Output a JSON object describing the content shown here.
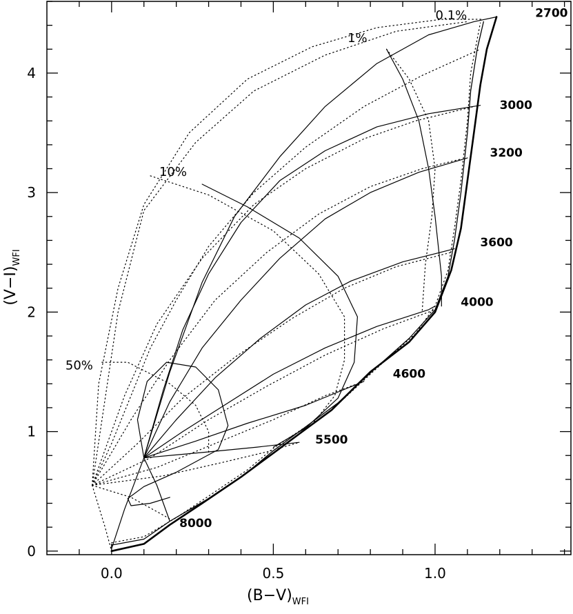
{
  "chart_data": {
    "type": "line",
    "title": "",
    "xlabel": "(B−V)",
    "xlabel_sub": "WFI",
    "ylabel": "(V−I)",
    "ylabel_sub": "WFI",
    "xlim": [
      -0.2,
      1.42
    ],
    "ylim": [
      -0.03,
      4.6
    ],
    "grid": false,
    "x_ticks": [
      {
        "v": 0.0,
        "label": "0.0"
      },
      {
        "v": 0.5,
        "label": "0.5"
      },
      {
        "v": 1.0,
        "label": "1.0"
      }
    ],
    "y_ticks": [
      {
        "v": 0,
        "label": "0"
      },
      {
        "v": 1,
        "label": "1"
      },
      {
        "v": 2,
        "label": "2"
      },
      {
        "v": 3,
        "label": "3"
      },
      {
        "v": 4,
        "label": "4"
      }
    ],
    "x_minor_step": 0.1,
    "y_minor_step": 0.2,
    "temperature_labels": [
      {
        "text": "2700",
        "x": 1.36,
        "y": 4.47
      },
      {
        "text": "3000",
        "x": 1.25,
        "y": 3.7
      },
      {
        "text": "3200",
        "x": 1.22,
        "y": 3.3
      },
      {
        "text": "3600",
        "x": 1.19,
        "y": 2.55
      },
      {
        "text": "4000",
        "x": 1.13,
        "y": 2.05
      },
      {
        "text": "4600",
        "x": 0.92,
        "y": 1.45
      },
      {
        "text": "5500",
        "x": 0.68,
        "y": 0.9
      },
      {
        "text": "8000",
        "x": 0.26,
        "y": 0.2
      }
    ],
    "fraction_labels": [
      {
        "text": "0.1%",
        "x": 1.05,
        "y": 4.45
      },
      {
        "text": "1%",
        "x": 0.76,
        "y": 4.26
      },
      {
        "text": "10%",
        "x": 0.19,
        "y": 3.14
      },
      {
        "text": "50%",
        "x": -0.1,
        "y": 1.52
      }
    ],
    "series": [
      {
        "style": "solid",
        "width": 2.6,
        "points": [
          [
            0.0,
            0.0
          ],
          [
            0.1,
            0.06
          ],
          [
            0.18,
            0.22
          ],
          [
            0.28,
            0.4
          ],
          [
            0.4,
            0.62
          ],
          [
            0.5,
            0.82
          ],
          [
            0.58,
            0.98
          ],
          [
            0.68,
            1.18
          ],
          [
            0.8,
            1.5
          ],
          [
            0.92,
            1.75
          ],
          [
            1.0,
            2.0
          ],
          [
            1.05,
            2.35
          ],
          [
            1.08,
            2.7
          ],
          [
            1.1,
            3.1
          ],
          [
            1.12,
            3.5
          ],
          [
            1.14,
            3.9
          ],
          [
            1.16,
            4.2
          ],
          [
            1.19,
            4.47
          ]
        ]
      },
      {
        "style": "solid",
        "width": 1.3,
        "points": [
          [
            0.0,
            0.05
          ],
          [
            0.1,
            0.1
          ],
          [
            0.18,
            0.25
          ],
          [
            0.3,
            0.44
          ],
          [
            0.42,
            0.66
          ],
          [
            0.5,
            0.84
          ],
          [
            0.58,
            1.0
          ],
          [
            0.7,
            1.24
          ],
          [
            0.82,
            1.54
          ],
          [
            0.92,
            1.78
          ],
          [
            1.0,
            2.02
          ],
          [
            1.04,
            2.3
          ],
          [
            1.06,
            2.6
          ],
          [
            1.08,
            3.0
          ],
          [
            1.1,
            3.5
          ],
          [
            1.11,
            3.85
          ],
          [
            1.13,
            4.2
          ],
          [
            1.15,
            4.43
          ]
        ]
      },
      {
        "style": "dotted",
        "width": 1.2,
        "points": [
          [
            0.0,
            0.07
          ],
          [
            0.1,
            0.12
          ],
          [
            0.2,
            0.28
          ],
          [
            0.3,
            0.46
          ],
          [
            0.42,
            0.68
          ],
          [
            0.5,
            0.86
          ],
          [
            0.6,
            1.04
          ],
          [
            0.72,
            1.28
          ],
          [
            0.84,
            1.58
          ],
          [
            0.94,
            1.82
          ],
          [
            1.0,
            2.05
          ],
          [
            1.04,
            2.35
          ],
          [
            1.06,
            2.7
          ],
          [
            1.08,
            3.1
          ],
          [
            1.1,
            3.6
          ],
          [
            1.11,
            4.0
          ],
          [
            1.14,
            4.42
          ]
        ]
      },
      {
        "style": "solid",
        "width": 1.2,
        "points": [
          [
            0.0,
            0.02
          ],
          [
            0.04,
            0.35
          ],
          [
            0.1,
            0.78
          ],
          [
            0.18,
            1.5
          ],
          [
            0.28,
            2.25
          ],
          [
            0.38,
            2.8
          ],
          [
            0.52,
            3.3
          ],
          [
            0.66,
            3.72
          ],
          [
            0.82,
            4.08
          ],
          [
            0.98,
            4.32
          ],
          [
            1.12,
            4.43
          ],
          [
            1.19,
            4.47
          ]
        ]
      },
      {
        "style": "solid",
        "width": 1.2,
        "points": [
          [
            0.1,
            0.78
          ],
          [
            0.16,
            1.35
          ],
          [
            0.22,
            1.85
          ],
          [
            0.3,
            2.32
          ],
          [
            0.4,
            2.75
          ],
          [
            0.52,
            3.1
          ],
          [
            0.66,
            3.35
          ],
          [
            0.82,
            3.55
          ],
          [
            0.98,
            3.66
          ],
          [
            1.14,
            3.73
          ]
        ]
      },
      {
        "style": "solid",
        "width": 1.2,
        "points": [
          [
            0.1,
            0.78
          ],
          [
            0.18,
            1.25
          ],
          [
            0.28,
            1.7
          ],
          [
            0.4,
            2.1
          ],
          [
            0.52,
            2.45
          ],
          [
            0.66,
            2.78
          ],
          [
            0.8,
            3.0
          ],
          [
            0.95,
            3.17
          ],
          [
            1.1,
            3.29
          ]
        ]
      },
      {
        "style": "solid",
        "width": 1.2,
        "points": [
          [
            0.1,
            0.78
          ],
          [
            0.2,
            1.1
          ],
          [
            0.32,
            1.45
          ],
          [
            0.46,
            1.78
          ],
          [
            0.6,
            2.06
          ],
          [
            0.74,
            2.26
          ],
          [
            0.9,
            2.42
          ],
          [
            1.06,
            2.53
          ]
        ]
      },
      {
        "style": "solid",
        "width": 1.2,
        "points": [
          [
            0.1,
            0.78
          ],
          [
            0.22,
            1.0
          ],
          [
            0.36,
            1.24
          ],
          [
            0.5,
            1.48
          ],
          [
            0.66,
            1.7
          ],
          [
            0.82,
            1.88
          ],
          [
            0.98,
            2.02
          ],
          [
            1.0,
            2.05
          ]
        ]
      },
      {
        "style": "solid",
        "width": 1.2,
        "points": [
          [
            0.1,
            0.78
          ],
          [
            0.26,
            0.92
          ],
          [
            0.42,
            1.07
          ],
          [
            0.6,
            1.22
          ],
          [
            0.78,
            1.42
          ]
        ]
      },
      {
        "style": "solid",
        "width": 1.2,
        "points": [
          [
            0.1,
            0.78
          ],
          [
            0.3,
            0.83
          ],
          [
            0.45,
            0.87
          ],
          [
            0.58,
            0.91
          ]
        ]
      },
      {
        "style": "solid",
        "width": 1.2,
        "points": [
          [
            0.1,
            0.78
          ],
          [
            0.14,
            0.55
          ],
          [
            0.18,
            0.25
          ]
        ]
      },
      {
        "style": "solid",
        "width": 1.2,
        "points": [
          [
            0.1,
            0.78
          ],
          [
            0.08,
            1.1
          ],
          [
            0.11,
            1.42
          ],
          [
            0.17,
            1.58
          ],
          [
            0.26,
            1.54
          ],
          [
            0.33,
            1.35
          ],
          [
            0.36,
            1.05
          ],
          [
            0.33,
            0.85
          ],
          [
            0.2,
            0.66
          ],
          [
            0.1,
            0.54
          ],
          [
            0.05,
            0.44
          ],
          [
            0.06,
            0.38
          ],
          [
            0.12,
            0.4
          ],
          [
            0.18,
            0.45
          ]
        ]
      },
      {
        "style": "solid",
        "width": 1.2,
        "points": [
          [
            0.28,
            3.07
          ],
          [
            0.42,
            2.88
          ],
          [
            0.58,
            2.62
          ],
          [
            0.7,
            2.3
          ],
          [
            0.76,
            1.96
          ],
          [
            0.75,
            1.58
          ],
          [
            0.7,
            1.28
          ],
          [
            0.6,
            1.03
          ],
          [
            0.5,
            0.87
          ]
        ]
      },
      {
        "style": "solid",
        "width": 1.2,
        "points": [
          [
            0.85,
            4.2
          ],
          [
            0.9,
            3.95
          ],
          [
            0.95,
            3.6
          ],
          [
            0.98,
            3.2
          ],
          [
            1.0,
            2.8
          ],
          [
            1.02,
            2.3
          ],
          [
            1.02,
            2.05
          ]
        ]
      },
      {
        "style": "dotted",
        "width": 1.2,
        "points": [
          [
            -0.06,
            0.55
          ],
          [
            -0.04,
            1.4
          ],
          [
            0.02,
            2.2
          ],
          [
            0.1,
            2.9
          ],
          [
            0.24,
            3.5
          ],
          [
            0.42,
            3.95
          ],
          [
            0.62,
            4.22
          ],
          [
            0.82,
            4.38
          ],
          [
            1.02,
            4.45
          ],
          [
            1.15,
            4.45
          ]
        ]
      },
      {
        "style": "dotted",
        "width": 1.2,
        "points": [
          [
            0.85,
            4.2
          ],
          [
            0.92,
            3.95
          ],
          [
            0.98,
            3.6
          ],
          [
            1.0,
            3.2
          ],
          [
            0.99,
            2.8
          ],
          [
            0.97,
            2.4
          ],
          [
            0.96,
            2.0
          ]
        ]
      },
      {
        "style": "dotted",
        "width": 1.2,
        "points": [
          [
            0.12,
            3.14
          ],
          [
            0.3,
            2.98
          ],
          [
            0.5,
            2.68
          ],
          [
            0.64,
            2.32
          ],
          [
            0.72,
            1.96
          ],
          [
            0.72,
            1.6
          ],
          [
            0.69,
            1.3
          ],
          [
            0.62,
            1.06
          ]
        ]
      },
      {
        "style": "dotted",
        "width": 1.2,
        "points": [
          [
            -0.03,
            1.58
          ],
          [
            0.05,
            1.58
          ],
          [
            0.18,
            1.4
          ],
          [
            0.26,
            1.22
          ],
          [
            0.3,
            1.0
          ],
          [
            0.3,
            0.82
          ]
        ]
      },
      {
        "style": "dotted",
        "width": 1.2,
        "points": [
          [
            -0.06,
            0.55
          ],
          [
            0.06,
            0.45
          ],
          [
            0.18,
            0.27
          ]
        ]
      },
      {
        "style": "dotted",
        "width": 1.2,
        "points": [
          [
            -0.06,
            0.55
          ],
          [
            0.02,
            2.0
          ],
          [
            0.1,
            2.85
          ],
          [
            0.26,
            3.42
          ],
          [
            0.44,
            3.85
          ],
          [
            0.66,
            4.15
          ],
          [
            0.88,
            4.35
          ],
          [
            1.1,
            4.43
          ]
        ]
      },
      {
        "style": "dotted",
        "width": 1.2,
        "points": [
          [
            -0.06,
            0.55
          ],
          [
            0.04,
            1.3
          ],
          [
            0.14,
            1.9
          ],
          [
            0.28,
            2.45
          ],
          [
            0.44,
            2.9
          ],
          [
            0.6,
            3.2
          ],
          [
            0.78,
            3.45
          ],
          [
            0.94,
            3.6
          ],
          [
            1.12,
            3.72
          ]
        ]
      },
      {
        "style": "dotted",
        "width": 1.2,
        "points": [
          [
            -0.06,
            0.55
          ],
          [
            0.06,
            1.1
          ],
          [
            0.18,
            1.6
          ],
          [
            0.32,
            2.1
          ],
          [
            0.48,
            2.5
          ],
          [
            0.64,
            2.82
          ],
          [
            0.8,
            3.05
          ],
          [
            0.96,
            3.2
          ],
          [
            1.08,
            3.28
          ]
        ]
      },
      {
        "style": "dotted",
        "width": 1.2,
        "points": [
          [
            -0.06,
            0.55
          ],
          [
            0.08,
            0.9
          ],
          [
            0.22,
            1.28
          ],
          [
            0.38,
            1.62
          ],
          [
            0.56,
            1.95
          ],
          [
            0.72,
            2.2
          ],
          [
            0.88,
            2.38
          ],
          [
            1.05,
            2.5
          ]
        ]
      },
      {
        "style": "dotted",
        "width": 1.2,
        "points": [
          [
            -0.06,
            0.55
          ],
          [
            0.12,
            0.78
          ],
          [
            0.3,
            1.1
          ],
          [
            0.48,
            1.38
          ],
          [
            0.66,
            1.64
          ],
          [
            0.84,
            1.86
          ],
          [
            1.0,
            2.02
          ]
        ]
      },
      {
        "style": "dotted",
        "width": 1.2,
        "points": [
          [
            -0.06,
            0.55
          ],
          [
            0.14,
            0.7
          ],
          [
            0.32,
            0.9
          ],
          [
            0.5,
            1.1
          ],
          [
            0.66,
            1.3
          ],
          [
            0.78,
            1.42
          ]
        ]
      },
      {
        "style": "dotted",
        "width": 1.2,
        "points": [
          [
            -0.06,
            0.55
          ],
          [
            0.16,
            0.63
          ],
          [
            0.34,
            0.74
          ],
          [
            0.48,
            0.83
          ],
          [
            0.58,
            0.91
          ]
        ]
      },
      {
        "style": "dotted",
        "width": 1.2,
        "points": [
          [
            -0.06,
            0.55
          ],
          [
            0.0,
            0.9
          ],
          [
            0.06,
            1.3
          ],
          [
            0.12,
            1.7
          ],
          [
            0.2,
            2.1
          ],
          [
            0.3,
            2.55
          ],
          [
            0.44,
            3.0
          ],
          [
            0.6,
            3.38
          ],
          [
            0.78,
            3.72
          ],
          [
            0.96,
            3.98
          ],
          [
            1.14,
            4.2
          ]
        ]
      },
      {
        "style": "dotted",
        "width": 1.2,
        "points": [
          [
            -0.06,
            0.55
          ],
          [
            -0.02,
            0.2
          ],
          [
            0.0,
            0.0
          ]
        ]
      }
    ]
  }
}
